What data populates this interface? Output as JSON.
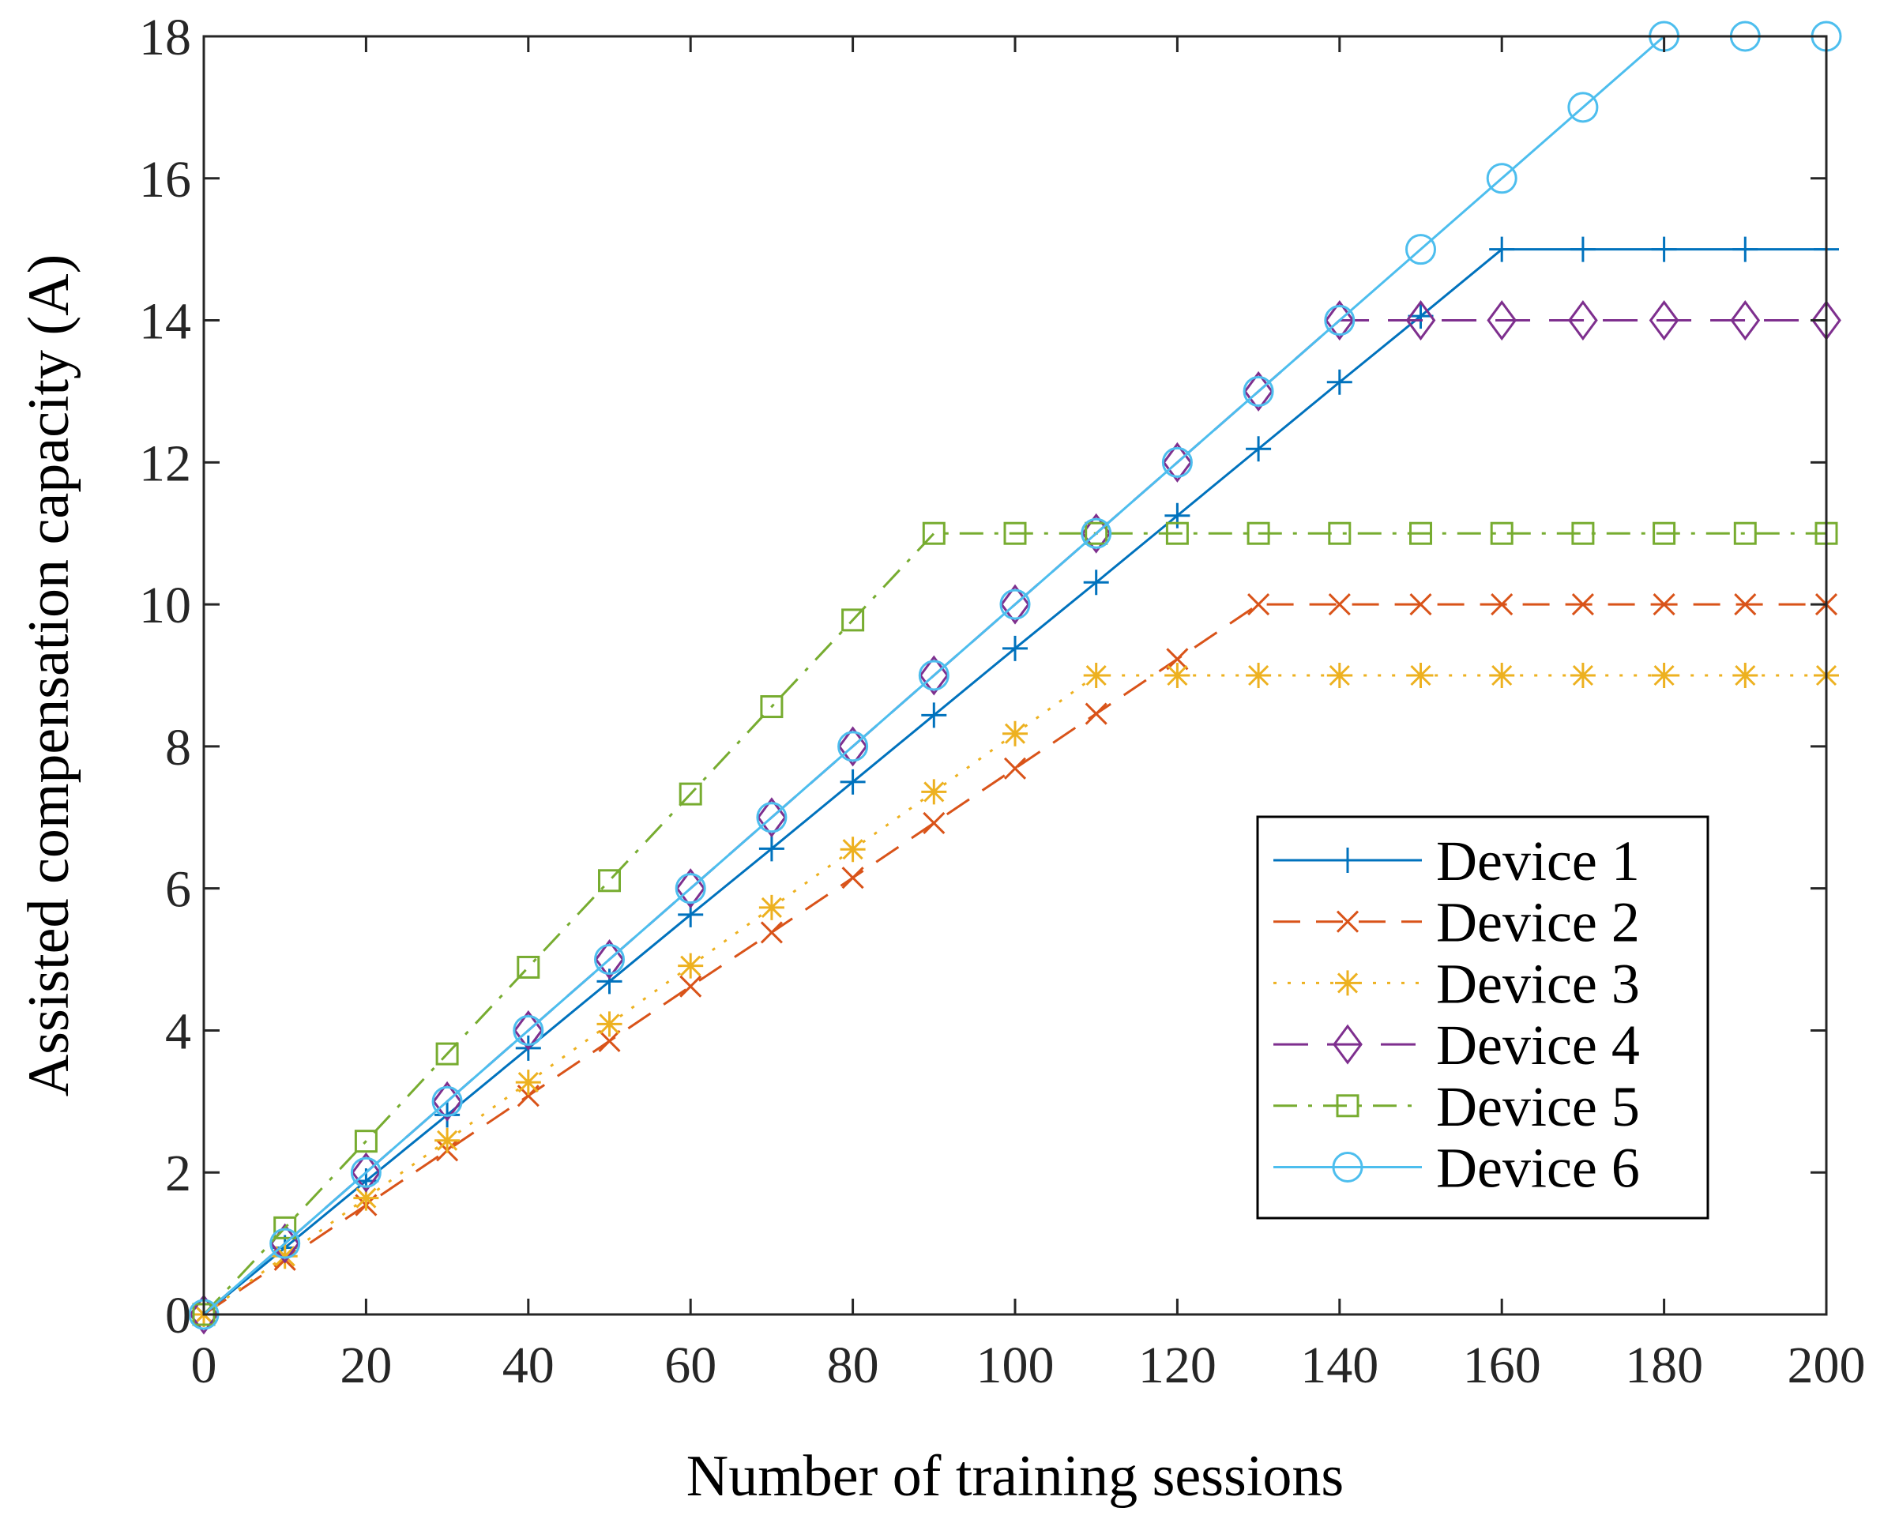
{
  "chart_data": {
    "type": "line",
    "title": "",
    "xlabel": "Number of training sessions",
    "ylabel": "Assisted compensation capacity (A)",
    "xlim": [
      0,
      200
    ],
    "ylim": [
      0,
      18
    ],
    "xticks": [
      "0",
      "20",
      "40",
      "60",
      "80",
      "100",
      "120",
      "140",
      "160",
      "180",
      "200"
    ],
    "yticks": [
      "0",
      "2",
      "4",
      "6",
      "8",
      "10",
      "12",
      "14",
      "16",
      "18"
    ],
    "grid": false,
    "legend_position": "lower-right",
    "x": [
      0,
      10,
      20,
      30,
      40,
      50,
      60,
      70,
      80,
      90,
      100,
      110,
      120,
      130,
      140,
      150,
      160,
      170,
      180,
      190,
      200
    ],
    "series": [
      {
        "name": "Device 1",
        "color": "#0072BD",
        "dash": "solid",
        "marker": "plus",
        "values": [
          0,
          0.94,
          1.88,
          2.81,
          3.75,
          4.69,
          5.63,
          6.56,
          7.5,
          8.44,
          9.38,
          10.31,
          11.25,
          12.19,
          13.13,
          14.06,
          15,
          15,
          15,
          15,
          15
        ]
      },
      {
        "name": "Device 2",
        "color": "#D95319",
        "dash": "dashed",
        "marker": "cross",
        "values": [
          0,
          0.77,
          1.54,
          2.31,
          3.08,
          3.85,
          4.62,
          5.38,
          6.15,
          6.92,
          7.69,
          8.46,
          9.23,
          10,
          10,
          10,
          10,
          10,
          10,
          10,
          10
        ]
      },
      {
        "name": "Device 3",
        "color": "#EDB120",
        "dash": "dotted",
        "marker": "star",
        "values": [
          0,
          0.82,
          1.64,
          2.45,
          3.27,
          4.09,
          4.91,
          5.73,
          6.55,
          7.36,
          8.18,
          9,
          9,
          9,
          9,
          9,
          9,
          9,
          9,
          9,
          9
        ]
      },
      {
        "name": "Device 4",
        "color": "#7E2F8E",
        "dash": "longdash",
        "marker": "diamond",
        "values": [
          0,
          1,
          2,
          3,
          4,
          5,
          6,
          7,
          8,
          9,
          10,
          11,
          12,
          13,
          14,
          14,
          14,
          14,
          14,
          14,
          14
        ]
      },
      {
        "name": "Device 5",
        "color": "#77AC30",
        "dash": "dashdot",
        "marker": "square",
        "values": [
          0,
          1.22,
          2.44,
          3.67,
          4.89,
          6.11,
          7.33,
          8.56,
          9.78,
          11,
          11,
          11,
          11,
          11,
          11,
          11,
          11,
          11,
          11,
          11,
          11
        ]
      },
      {
        "name": "Device 6",
        "color": "#4DBEEE",
        "dash": "solid",
        "marker": "circle",
        "values": [
          0,
          1,
          2,
          3,
          4,
          5,
          6,
          7,
          8,
          9,
          10,
          11,
          12,
          13,
          14,
          15,
          16,
          17,
          18,
          18,
          18
        ]
      }
    ]
  }
}
